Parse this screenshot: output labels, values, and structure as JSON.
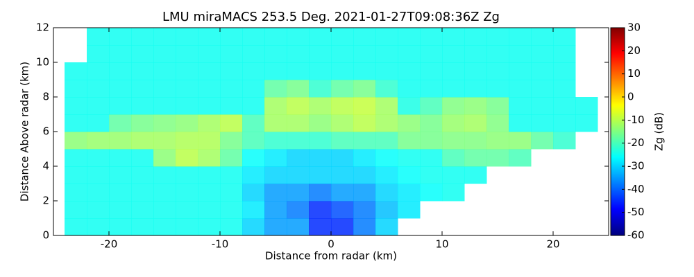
{
  "chart_data": {
    "type": "heatmap",
    "title": "LMU miraMACS 253.5 Deg. 2021-01-27T09:08:36Z  Zg",
    "xlabel": "Distance from radar (km)",
    "ylabel": "Distance Above radar  (km)",
    "x_bins": [
      -24,
      -22,
      -20,
      -18,
      -16,
      -14,
      -12,
      -10,
      -8,
      -6,
      -4,
      -2,
      0,
      2,
      4,
      6,
      8,
      10,
      12,
      14,
      16,
      18,
      20,
      22,
      24
    ],
    "y_bins": [
      0,
      1,
      2,
      3,
      4,
      5,
      6,
      7,
      8,
      9,
      10,
      11,
      12
    ],
    "values": [
      [
        -25,
        -25,
        -25,
        -25,
        -25,
        -25,
        -25,
        -25,
        -30,
        -35,
        -35,
        -45,
        -45,
        -38,
        -30,
        null,
        null,
        null,
        null,
        null,
        null,
        null,
        null,
        null
      ],
      [
        -25,
        -25,
        -25,
        -25,
        -25,
        -25,
        -25,
        -25,
        -28,
        -35,
        -38,
        -45,
        -42,
        -38,
        -32,
        -28,
        null,
        null,
        null,
        null,
        null,
        null,
        null,
        null
      ],
      [
        -25,
        -25,
        -25,
        -25,
        -25,
        -25,
        -25,
        -25,
        -30,
        -35,
        -35,
        -38,
        -35,
        -35,
        -30,
        -28,
        -26,
        -25,
        null,
        null,
        null,
        null,
        null,
        null
      ],
      [
        -25,
        -25,
        -25,
        -25,
        -25,
        -25,
        -25,
        -25,
        -28,
        -30,
        -30,
        -30,
        -30,
        -30,
        -28,
        -26,
        -25,
        -25,
        -25,
        null,
        null,
        null,
        null,
        null
      ],
      [
        -25,
        -25,
        -25,
        -25,
        -14,
        -10,
        -12,
        -18,
        -26,
        -28,
        -30,
        -30,
        -30,
        -28,
        -26,
        -25,
        -25,
        -20,
        -18,
        -18,
        -20,
        null,
        null,
        null
      ],
      [
        -14,
        -13,
        -13,
        -12,
        -12,
        -11,
        -11,
        -16,
        -20,
        -22,
        -22,
        -22,
        -20,
        -20,
        -20,
        -16,
        -16,
        -15,
        -15,
        -14,
        -14,
        -18,
        -22,
        null
      ],
      [
        -25,
        -25,
        -18,
        -16,
        -15,
        -14,
        -12,
        -10,
        -20,
        -12,
        -12,
        -14,
        -12,
        -10,
        -12,
        -14,
        -16,
        -13,
        -12,
        -15,
        -25,
        -25,
        -25,
        -25
      ],
      [
        -25,
        -25,
        -25,
        -25,
        -25,
        -25,
        -25,
        -25,
        -25,
        -12,
        -10,
        -12,
        -10,
        -9,
        -12,
        -24,
        -20,
        -15,
        -14,
        -16,
        -25,
        -25,
        -25,
        -25
      ],
      [
        -25,
        -25,
        -25,
        -25,
        -25,
        -25,
        -25,
        -25,
        -25,
        -18,
        -16,
        -22,
        -18,
        -16,
        -22,
        -25,
        -25,
        -25,
        -25,
        -25,
        -25,
        -25,
        -25,
        null
      ],
      [
        -25,
        -25,
        -25,
        -25,
        -25,
        -25,
        -25,
        -25,
        -25,
        -25,
        -25,
        -25,
        -25,
        -25,
        -25,
        -25,
        -25,
        -25,
        -25,
        -25,
        -25,
        -25,
        -25,
        null
      ],
      [
        null,
        -25,
        -25,
        -25,
        -25,
        -25,
        -25,
        -25,
        -25,
        -25,
        -25,
        -25,
        -25,
        -25,
        -25,
        -25,
        -25,
        -25,
        -25,
        -25,
        -25,
        -25,
        -25,
        null
      ],
      [
        null,
        -25,
        -25,
        -25,
        -25,
        -25,
        -25,
        -25,
        -25,
        -25,
        -25,
        -25,
        -25,
        -25,
        -25,
        -25,
        -25,
        -25,
        -25,
        -25,
        -25,
        -25,
        -25,
        null
      ]
    ],
    "xlim": [
      -25,
      25
    ],
    "ylim": [
      0,
      12
    ],
    "xticks": [
      -20,
      -10,
      0,
      10,
      20
    ],
    "yticks": [
      0,
      2,
      4,
      6,
      8,
      10,
      12
    ],
    "colorbar": {
      "label": "Zg (dB)",
      "lim": [
        -60,
        30
      ],
      "ticks": [
        -60,
        -50,
        -40,
        -30,
        -20,
        -10,
        0,
        10,
        20,
        30
      ],
      "colormap": "jet"
    }
  }
}
